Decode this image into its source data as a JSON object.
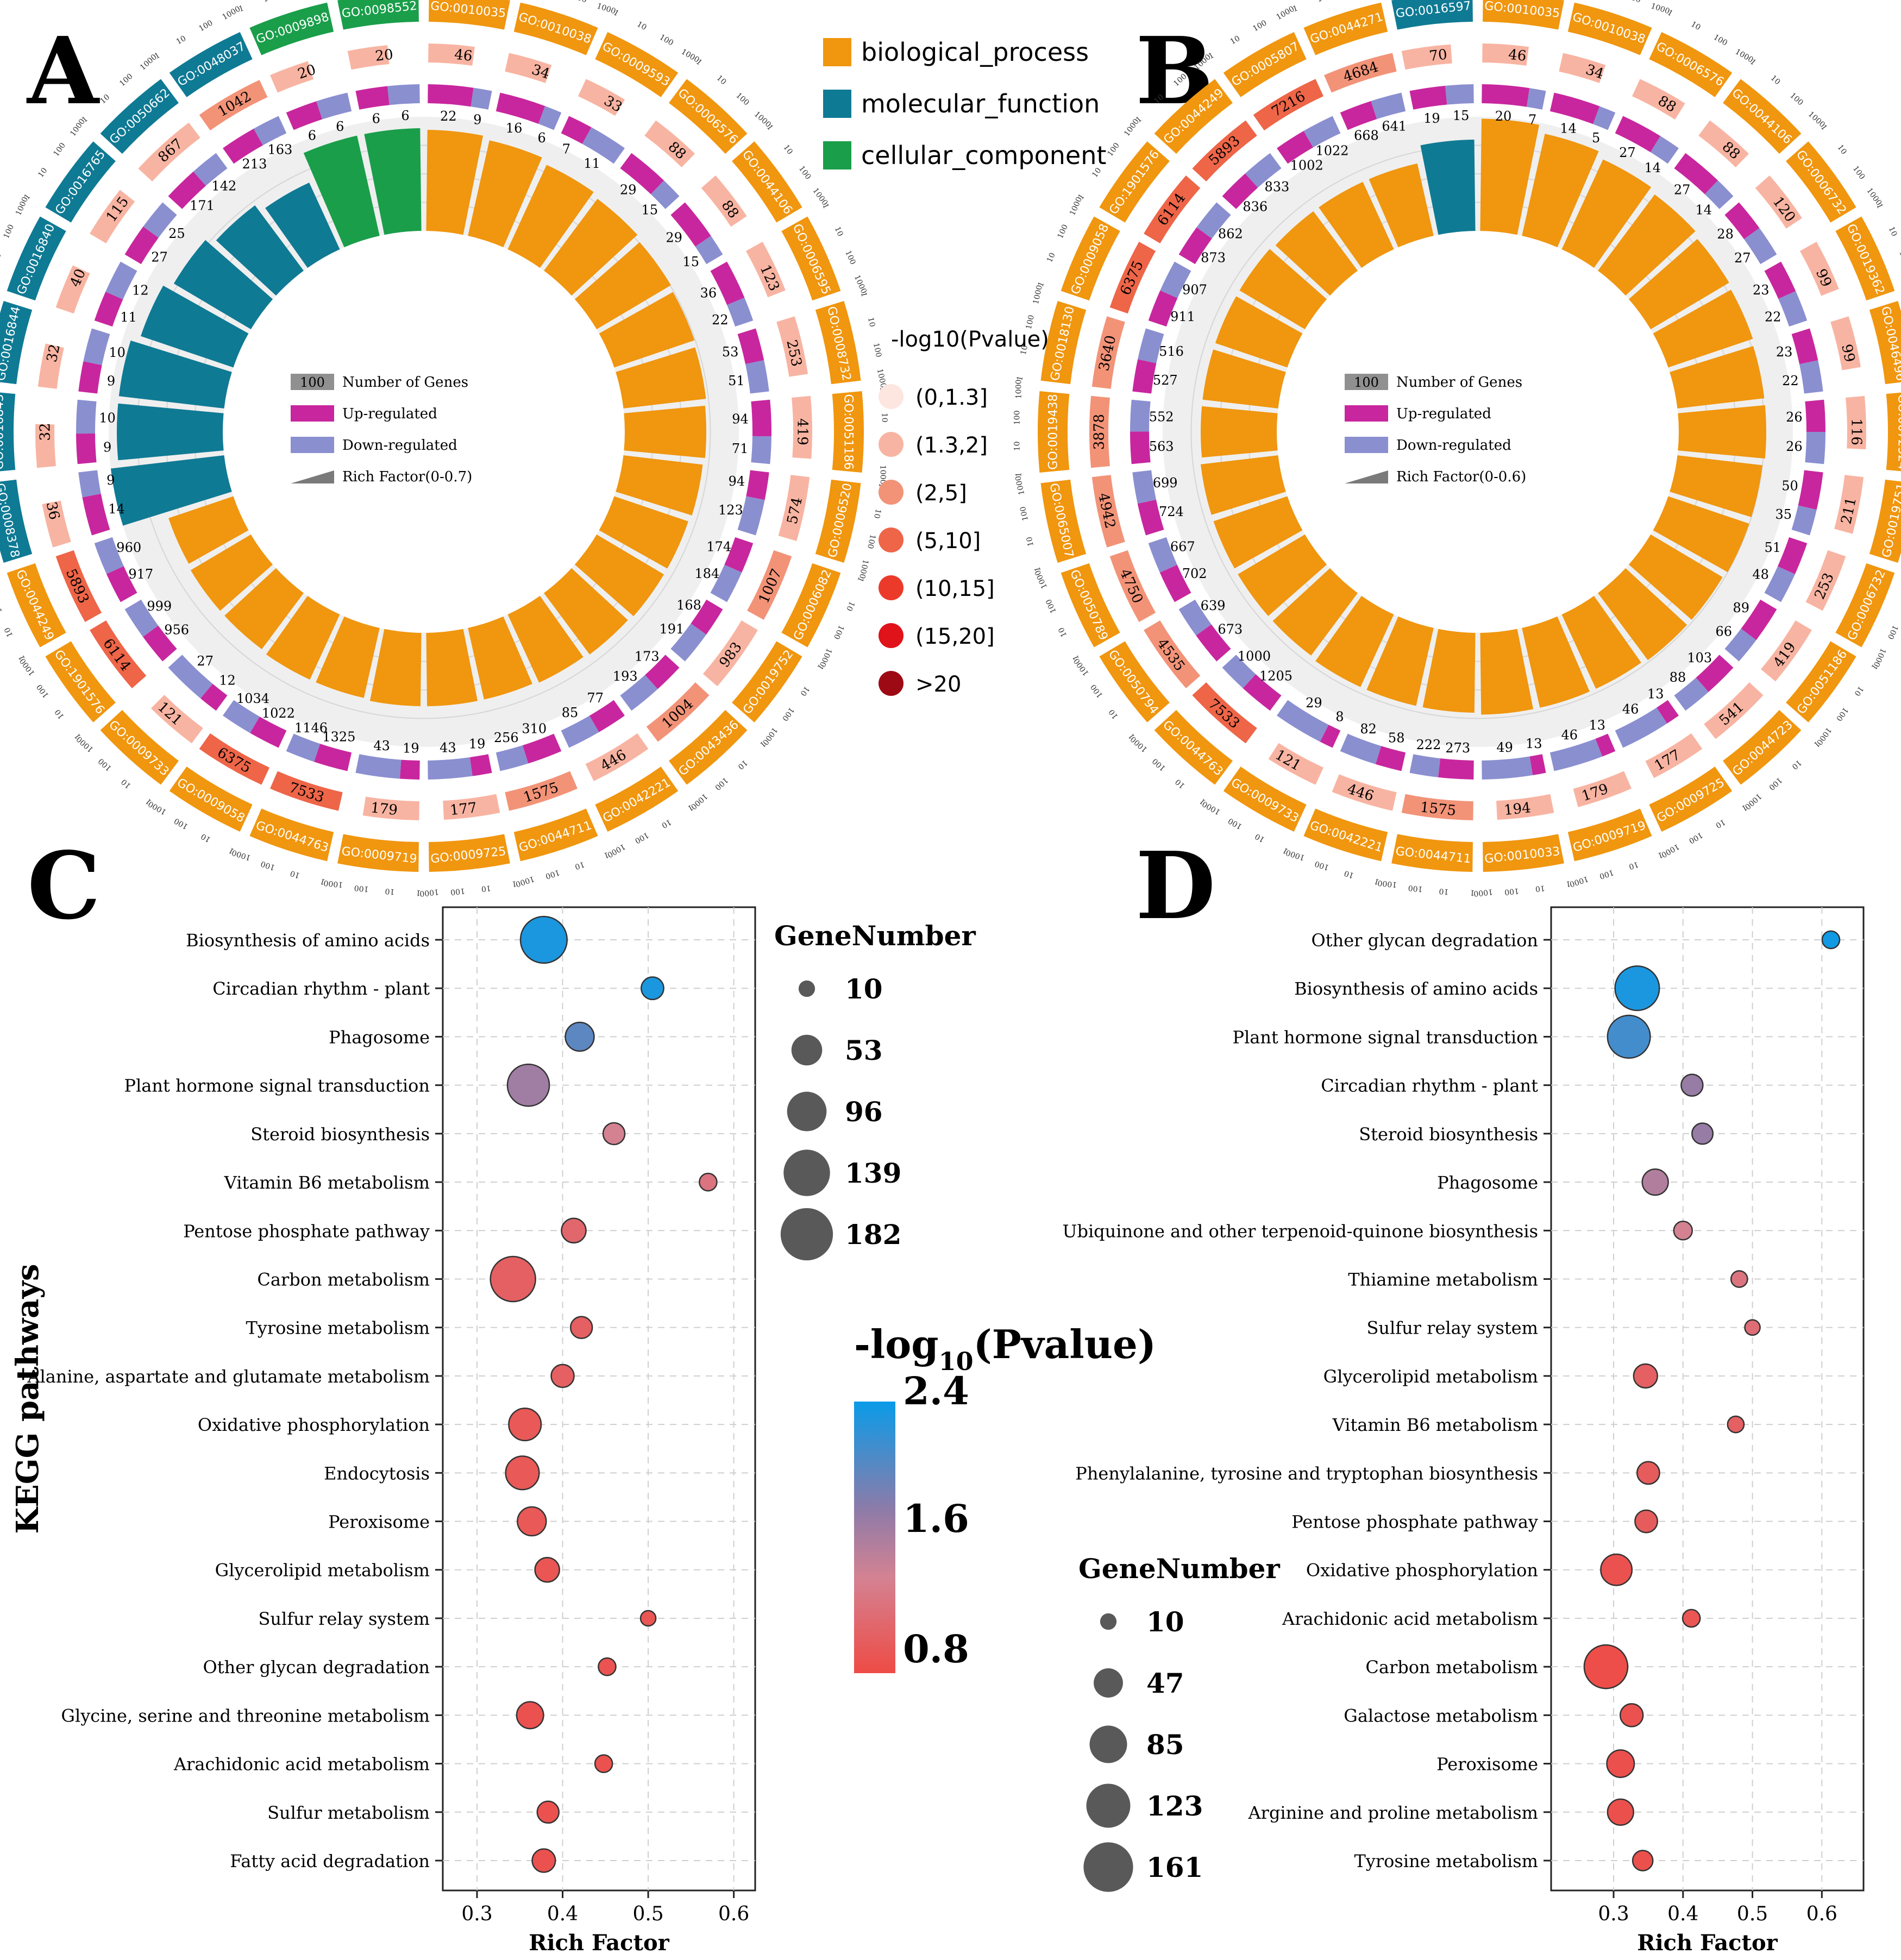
{
  "panels": {
    "A": "A",
    "B": "B",
    "C": "C",
    "D": "D"
  },
  "go_legend": {
    "categories": [
      {
        "label": "biological_process",
        "color": "#F0960F"
      },
      {
        "label": "molecular_function",
        "color": "#0F7A94"
      },
      {
        "label": "cellular_component",
        "color": "#1A9E4A"
      }
    ],
    "pvalue_title": "-log10(Pvalue)",
    "pvalue_bins": [
      {
        "label": "(0,1.3]",
        "color": "#FDE5E0"
      },
      {
        "label": "(1.3,2]",
        "color": "#F8B4A2"
      },
      {
        "label": "(2,5]",
        "color": "#F29378"
      },
      {
        "label": "(5,10]",
        "color": "#EE6548"
      },
      {
        "label": "(10,15]",
        "color": "#EC3A2A"
      },
      {
        "label": "(15,20]",
        "color": "#E0121A"
      },
      {
        "label": ">20",
        "color": "#9E0A14"
      }
    ]
  },
  "chart_data": [
    {
      "type": "circular-bar",
      "panel": "A",
      "center_legend": [
        "Number of Genes",
        "Up-regulated",
        "Down-regulated",
        "Rich Factor(0-0.7)"
      ],
      "center_legend_value": "100",
      "rich_max": 0.7,
      "sectors": [
        {
          "id": "GO:0010035",
          "cat": "biological_process",
          "genes": 46,
          "up": 22,
          "down": 9,
          "rich": 0.62
        },
        {
          "id": "GO:0010038",
          "cat": "biological_process",
          "genes": 34,
          "up": 16,
          "down": 6,
          "rich": 0.6
        },
        {
          "id": "GO:0009593",
          "cat": "biological_process",
          "genes": 33,
          "up": 7,
          "down": 11,
          "rich": 0.57
        },
        {
          "id": "GO:0006576",
          "cat": "biological_process",
          "genes": 88,
          "up": 29,
          "down": 15,
          "rich": 0.55
        },
        {
          "id": "GO:0044106",
          "cat": "biological_process",
          "genes": 88,
          "up": 29,
          "down": 15,
          "rich": 0.53
        },
        {
          "id": "GO:0006595",
          "cat": "biological_process",
          "genes": 123,
          "up": 36,
          "down": 22,
          "rich": 0.52
        },
        {
          "id": "GO:0008732",
          "cat": "biological_process",
          "genes": 253,
          "up": 53,
          "down": 51,
          "rich": 0.51
        },
        {
          "id": "GO:0051186",
          "cat": "biological_process",
          "genes": 419,
          "up": 94,
          "down": 71,
          "rich": 0.5
        },
        {
          "id": "GO:0006520",
          "cat": "biological_process",
          "genes": 574,
          "up": 94,
          "down": 123,
          "rich": 0.49
        },
        {
          "id": "GO:0006082",
          "cat": "biological_process",
          "genes": 1007,
          "up": 174,
          "down": 184,
          "rich": 0.48
        },
        {
          "id": "GO:0019752",
          "cat": "biological_process",
          "genes": 983,
          "up": 168,
          "down": 191,
          "rich": 0.48
        },
        {
          "id": "GO:0043436",
          "cat": "biological_process",
          "genes": 1004,
          "up": 173,
          "down": 193,
          "rich": 0.47
        },
        {
          "id": "GO:0042221",
          "cat": "biological_process",
          "genes": 446,
          "up": 77,
          "down": 85,
          "rich": 0.46
        },
        {
          "id": "GO:0044711",
          "cat": "biological_process",
          "genes": 1575,
          "up": 310,
          "down": 256,
          "rich": 0.45
        },
        {
          "id": "GO:0009725",
          "cat": "biological_process",
          "genes": 177,
          "up": 19,
          "down": 43,
          "rich": 0.45
        },
        {
          "id": "GO:0009719",
          "cat": "biological_process",
          "genes": 179,
          "up": 19,
          "down": 43,
          "rich": 0.45
        },
        {
          "id": "GO:0044763",
          "cat": "biological_process",
          "genes": 7533,
          "up": 1325,
          "down": 1146,
          "rich": 0.44
        },
        {
          "id": "GO:0009058",
          "cat": "biological_process",
          "genes": 6375,
          "up": 1022,
          "down": 1034,
          "rich": 0.44
        },
        {
          "id": "GO:0009733",
          "cat": "biological_process",
          "genes": 121,
          "up": 12,
          "down": 27,
          "rich": 0.43
        },
        {
          "id": "GO:1901576",
          "cat": "biological_process",
          "genes": 6114,
          "up": 956,
          "down": 999,
          "rich": 0.43
        },
        {
          "id": "GO:0044249",
          "cat": "biological_process",
          "genes": 5893,
          "up": 917,
          "down": 960,
          "rich": 0.42
        },
        {
          "id": "GO:0008378",
          "cat": "molecular_function",
          "genes": 36,
          "up": 14,
          "down": 9,
          "rich": 0.7
        },
        {
          "id": "GO:0016843",
          "cat": "molecular_function",
          "genes": 32,
          "up": 9,
          "down": 10,
          "rich": 0.65
        },
        {
          "id": "GO:0016844",
          "cat": "molecular_function",
          "genes": 32,
          "up": 9,
          "down": 10,
          "rich": 0.65
        },
        {
          "id": "GO:0016840",
          "cat": "molecular_function",
          "genes": 40,
          "up": 11,
          "down": 12,
          "rich": 0.6
        },
        {
          "id": "GO:0016765",
          "cat": "molecular_function",
          "genes": 115,
          "up": 27,
          "down": 25,
          "rich": 0.55
        },
        {
          "id": "GO:0050662",
          "cat": "molecular_function",
          "genes": 867,
          "up": 171,
          "down": 142,
          "rich": 0.5
        },
        {
          "id": "GO:0048037",
          "cat": "molecular_function",
          "genes": 1042,
          "up": 213,
          "down": 163,
          "rich": 0.45
        },
        {
          "id": "GO:0009898",
          "cat": "cellular_component",
          "genes": 20,
          "up": 6,
          "down": 6,
          "rich": 0.63
        },
        {
          "id": "GO:0098552",
          "cat": "cellular_component",
          "genes": 20,
          "up": 6,
          "down": 6,
          "rich": 0.63
        }
      ]
    },
    {
      "type": "circular-bar",
      "panel": "B",
      "center_legend": [
        "Number of Genes",
        "Up-regulated",
        "Down-regulated",
        "Rich Factor(0-0.6)"
      ],
      "center_legend_value": "100",
      "rich_max": 0.6,
      "sectors": [
        {
          "id": "GO:0010035",
          "cat": "biological_process",
          "genes": 46,
          "up": 20,
          "down": 7,
          "rich": 0.59
        },
        {
          "id": "GO:0010038",
          "cat": "biological_process",
          "genes": 34,
          "up": 14,
          "down": 5,
          "rich": 0.55
        },
        {
          "id": "GO:0006576",
          "cat": "biological_process",
          "genes": 88,
          "up": 27,
          "down": 14,
          "rich": 0.52
        },
        {
          "id": "GO:0044106",
          "cat": "biological_process",
          "genes": 88,
          "up": 27,
          "down": 14,
          "rich": 0.5
        },
        {
          "id": "GO:0006732",
          "cat": "biological_process",
          "genes": 120,
          "up": 28,
          "down": 27,
          "rich": 0.48
        },
        {
          "id": "GO:0019362",
          "cat": "biological_process",
          "genes": 99,
          "up": 23,
          "down": 22,
          "rich": 0.47
        },
        {
          "id": "GO:0046496",
          "cat": "biological_process",
          "genes": 99,
          "up": 23,
          "down": 22,
          "rich": 0.46
        },
        {
          "id": "GO:0072524",
          "cat": "biological_process",
          "genes": 116,
          "up": 26,
          "down": 26,
          "rich": 0.46
        },
        {
          "id": "GO:0019751",
          "cat": "biological_process",
          "genes": 211,
          "up": 50,
          "down": 35,
          "rich": 0.45
        },
        {
          "id": "GO:0006732",
          "cat": "biological_process",
          "genes": 253,
          "up": 51,
          "down": 48,
          "rich": 0.45
        },
        {
          "id": "GO:0051186",
          "cat": "biological_process",
          "genes": 419,
          "up": 89,
          "down": 66,
          "rich": 0.44
        },
        {
          "id": "GO:0044723",
          "cat": "biological_process",
          "genes": 541,
          "up": 103,
          "down": 88,
          "rich": 0.44
        },
        {
          "id": "GO:0009725",
          "cat": "biological_process",
          "genes": 177,
          "up": 13,
          "down": 46,
          "rich": 0.43
        },
        {
          "id": "GO:0009719",
          "cat": "biological_process",
          "genes": 179,
          "up": 13,
          "down": 46,
          "rich": 0.43
        },
        {
          "id": "GO:0010033",
          "cat": "biological_process",
          "genes": 194,
          "up": 13,
          "down": 49,
          "rich": 0.43
        },
        {
          "id": "GO:0044711",
          "cat": "biological_process",
          "genes": 1575,
          "up": 273,
          "down": 222,
          "rich": 0.42
        },
        {
          "id": "GO:0042221",
          "cat": "biological_process",
          "genes": 446,
          "up": 58,
          "down": 82,
          "rich": 0.42
        },
        {
          "id": "GO:0009733",
          "cat": "biological_process",
          "genes": 121,
          "up": 8,
          "down": 29,
          "rich": 0.42
        },
        {
          "id": "GO:0044763",
          "cat": "biological_process",
          "genes": 7533,
          "up": 1205,
          "down": 1000,
          "rich": 0.41
        },
        {
          "id": "GO:0050794",
          "cat": "biological_process",
          "genes": 4535,
          "up": 673,
          "down": 639,
          "rich": 0.41
        },
        {
          "id": "GO:0050789",
          "cat": "biological_process",
          "genes": 4750,
          "up": 702,
          "down": 667,
          "rich": 0.41
        },
        {
          "id": "GO:0065007",
          "cat": "biological_process",
          "genes": 4942,
          "up": 724,
          "down": 699,
          "rich": 0.41
        },
        {
          "id": "GO:0019438",
          "cat": "biological_process",
          "genes": 3878,
          "up": 563,
          "down": 552,
          "rich": 0.4
        },
        {
          "id": "GO:0018130",
          "cat": "biological_process",
          "genes": 3640,
          "up": 527,
          "down": 516,
          "rich": 0.4
        },
        {
          "id": "GO:0009058",
          "cat": "biological_process",
          "genes": 6375,
          "up": 911,
          "down": 907,
          "rich": 0.4
        },
        {
          "id": "GO:1901576",
          "cat": "biological_process",
          "genes": 6114,
          "up": 873,
          "down": 862,
          "rich": 0.4
        },
        {
          "id": "GO:0044249",
          "cat": "biological_process",
          "genes": 5893,
          "up": 836,
          "down": 833,
          "rich": 0.39
        },
        {
          "id": "GO:0005807",
          "cat": "biological_process",
          "genes": 7216,
          "up": 1002,
          "down": 1022,
          "rich": 0.39
        },
        {
          "id": "GO:0044271",
          "cat": "biological_process",
          "genes": 4684,
          "up": 668,
          "down": 641,
          "rich": 0.39
        },
        {
          "id": "GO:0016597",
          "cat": "molecular_function",
          "genes": 70,
          "up": 19,
          "down": 15,
          "rich": 0.48
        }
      ]
    },
    {
      "type": "scatter",
      "panel": "C",
      "xlabel": "Rich Factor",
      "ylabel": "KEGG pathways",
      "xlim": [
        0.26,
        0.625
      ],
      "xticks": [
        0.3,
        0.4,
        0.5,
        0.6
      ],
      "grid": true,
      "size_legend": {
        "title": "GeneNumber",
        "values": [
          10,
          53,
          96,
          139,
          182
        ]
      },
      "color_legend": {
        "title_main": "-log",
        "title_sub": "10",
        "title_end": "(Pvalue)",
        "min": 0.8,
        "mid": 1.6,
        "max": 2.4
      },
      "points": [
        {
          "pathway": "Biosynthesis of amino acids",
          "rich": 0.378,
          "genes": 140,
          "logp": 2.3
        },
        {
          "pathway": "Circadian rhythm - plant",
          "rich": 0.505,
          "genes": 24,
          "logp": 2.3
        },
        {
          "pathway": "Phagosome",
          "rich": 0.42,
          "genes": 45,
          "logp": 1.9
        },
        {
          "pathway": "Plant hormone signal transduction",
          "rich": 0.36,
          "genes": 110,
          "logp": 1.5
        },
        {
          "pathway": "Steroid biosynthesis",
          "rich": 0.46,
          "genes": 22,
          "logp": 1.2
        },
        {
          "pathway": "Vitamin B6 metabolism",
          "rich": 0.57,
          "genes": 12,
          "logp": 1.1
        },
        {
          "pathway": "Pentose phosphate pathway",
          "rich": 0.413,
          "genes": 30,
          "logp": 1.0
        },
        {
          "pathway": "Carbon metabolism",
          "rich": 0.342,
          "genes": 130,
          "logp": 0.95
        },
        {
          "pathway": "Tyrosine metabolism",
          "rich": 0.422,
          "genes": 22,
          "logp": 0.95
        },
        {
          "pathway": "Alanine, aspartate and glutamate metabolism",
          "rich": 0.4,
          "genes": 25,
          "logp": 0.95
        },
        {
          "pathway": "Oxidative phosphorylation",
          "rich": 0.356,
          "genes": 60,
          "logp": 0.9
        },
        {
          "pathway": "Endocytosis",
          "rich": 0.353,
          "genes": 65,
          "logp": 0.9
        },
        {
          "pathway": "Peroxisome",
          "rich": 0.364,
          "genes": 45,
          "logp": 0.9
        },
        {
          "pathway": "Glycerolipid metabolism",
          "rich": 0.382,
          "genes": 30,
          "logp": 0.88
        },
        {
          "pathway": "Sulfur relay system",
          "rich": 0.5,
          "genes": 8,
          "logp": 0.88
        },
        {
          "pathway": "Other glycan degradation",
          "rich": 0.452,
          "genes": 12,
          "logp": 0.86
        },
        {
          "pathway": "Glycine, serine and threonine metabolism",
          "rich": 0.362,
          "genes": 38,
          "logp": 0.85
        },
        {
          "pathway": "Arachidonic acid metabolism",
          "rich": 0.448,
          "genes": 12,
          "logp": 0.85
        },
        {
          "pathway": "Sulfur metabolism",
          "rich": 0.383,
          "genes": 22,
          "logp": 0.85
        },
        {
          "pathway": "Fatty acid degradation",
          "rich": 0.378,
          "genes": 26,
          "logp": 0.85
        }
      ]
    },
    {
      "type": "scatter",
      "panel": "D",
      "xlabel": "Rich Factor",
      "ylabel": "",
      "xlim": [
        0.21,
        0.66
      ],
      "xticks": [
        0.3,
        0.4,
        0.5,
        0.6
      ],
      "grid": true,
      "size_legend": {
        "title": "GeneNumber",
        "values": [
          10,
          47,
          85,
          123,
          161
        ]
      },
      "color_min": 0.8,
      "color_max": 2.4,
      "points": [
        {
          "pathway": "Other glycan degradation",
          "rich": 0.613,
          "genes": 12,
          "logp": 2.35
        },
        {
          "pathway": "Biosynthesis of amino acids",
          "rich": 0.334,
          "genes": 125,
          "logp": 2.3
        },
        {
          "pathway": "Plant hormone signal transduction",
          "rich": 0.322,
          "genes": 115,
          "logp": 2.05
        },
        {
          "pathway": "Circadian rhythm - plant",
          "rich": 0.413,
          "genes": 22,
          "logp": 1.55
        },
        {
          "pathway": "Steroid biosynthesis",
          "rich": 0.428,
          "genes": 20,
          "logp": 1.55
        },
        {
          "pathway": "Phagosome",
          "rich": 0.36,
          "genes": 35,
          "logp": 1.4
        },
        {
          "pathway": "Ubiquinone and other terpenoid-quinone biosynthesis",
          "rich": 0.4,
          "genes": 14,
          "logp": 1.2
        },
        {
          "pathway": "Thiamine metabolism",
          "rich": 0.481,
          "genes": 10,
          "logp": 1.1
        },
        {
          "pathway": "Sulfur relay system",
          "rich": 0.5,
          "genes": 8,
          "logp": 1.05
        },
        {
          "pathway": "Glycerolipid metabolism",
          "rich": 0.346,
          "genes": 28,
          "logp": 0.95
        },
        {
          "pathway": "Vitamin B6 metabolism",
          "rich": 0.476,
          "genes": 10,
          "logp": 0.95
        },
        {
          "pathway": "Phenylalanine, tyrosine and tryptophan biosynthesis",
          "rich": 0.35,
          "genes": 24,
          "logp": 0.92
        },
        {
          "pathway": "Pentose phosphate pathway",
          "rich": 0.347,
          "genes": 24,
          "logp": 0.92
        },
        {
          "pathway": "Oxidative phosphorylation",
          "rich": 0.304,
          "genes": 55,
          "logp": 0.85
        },
        {
          "pathway": "Arachidonic acid metabolism",
          "rich": 0.412,
          "genes": 12,
          "logp": 0.88
        },
        {
          "pathway": "Carbon metabolism",
          "rich": 0.289,
          "genes": 120,
          "logp": 0.82
        },
        {
          "pathway": "Galactose metabolism",
          "rich": 0.326,
          "genes": 25,
          "logp": 0.85
        },
        {
          "pathway": "Peroxisome",
          "rich": 0.31,
          "genes": 40,
          "logp": 0.84
        },
        {
          "pathway": "Arginine and proline metabolism",
          "rich": 0.31,
          "genes": 35,
          "logp": 0.84
        },
        {
          "pathway": "Tyrosine metabolism",
          "rich": 0.342,
          "genes": 18,
          "logp": 0.84
        }
      ]
    }
  ]
}
